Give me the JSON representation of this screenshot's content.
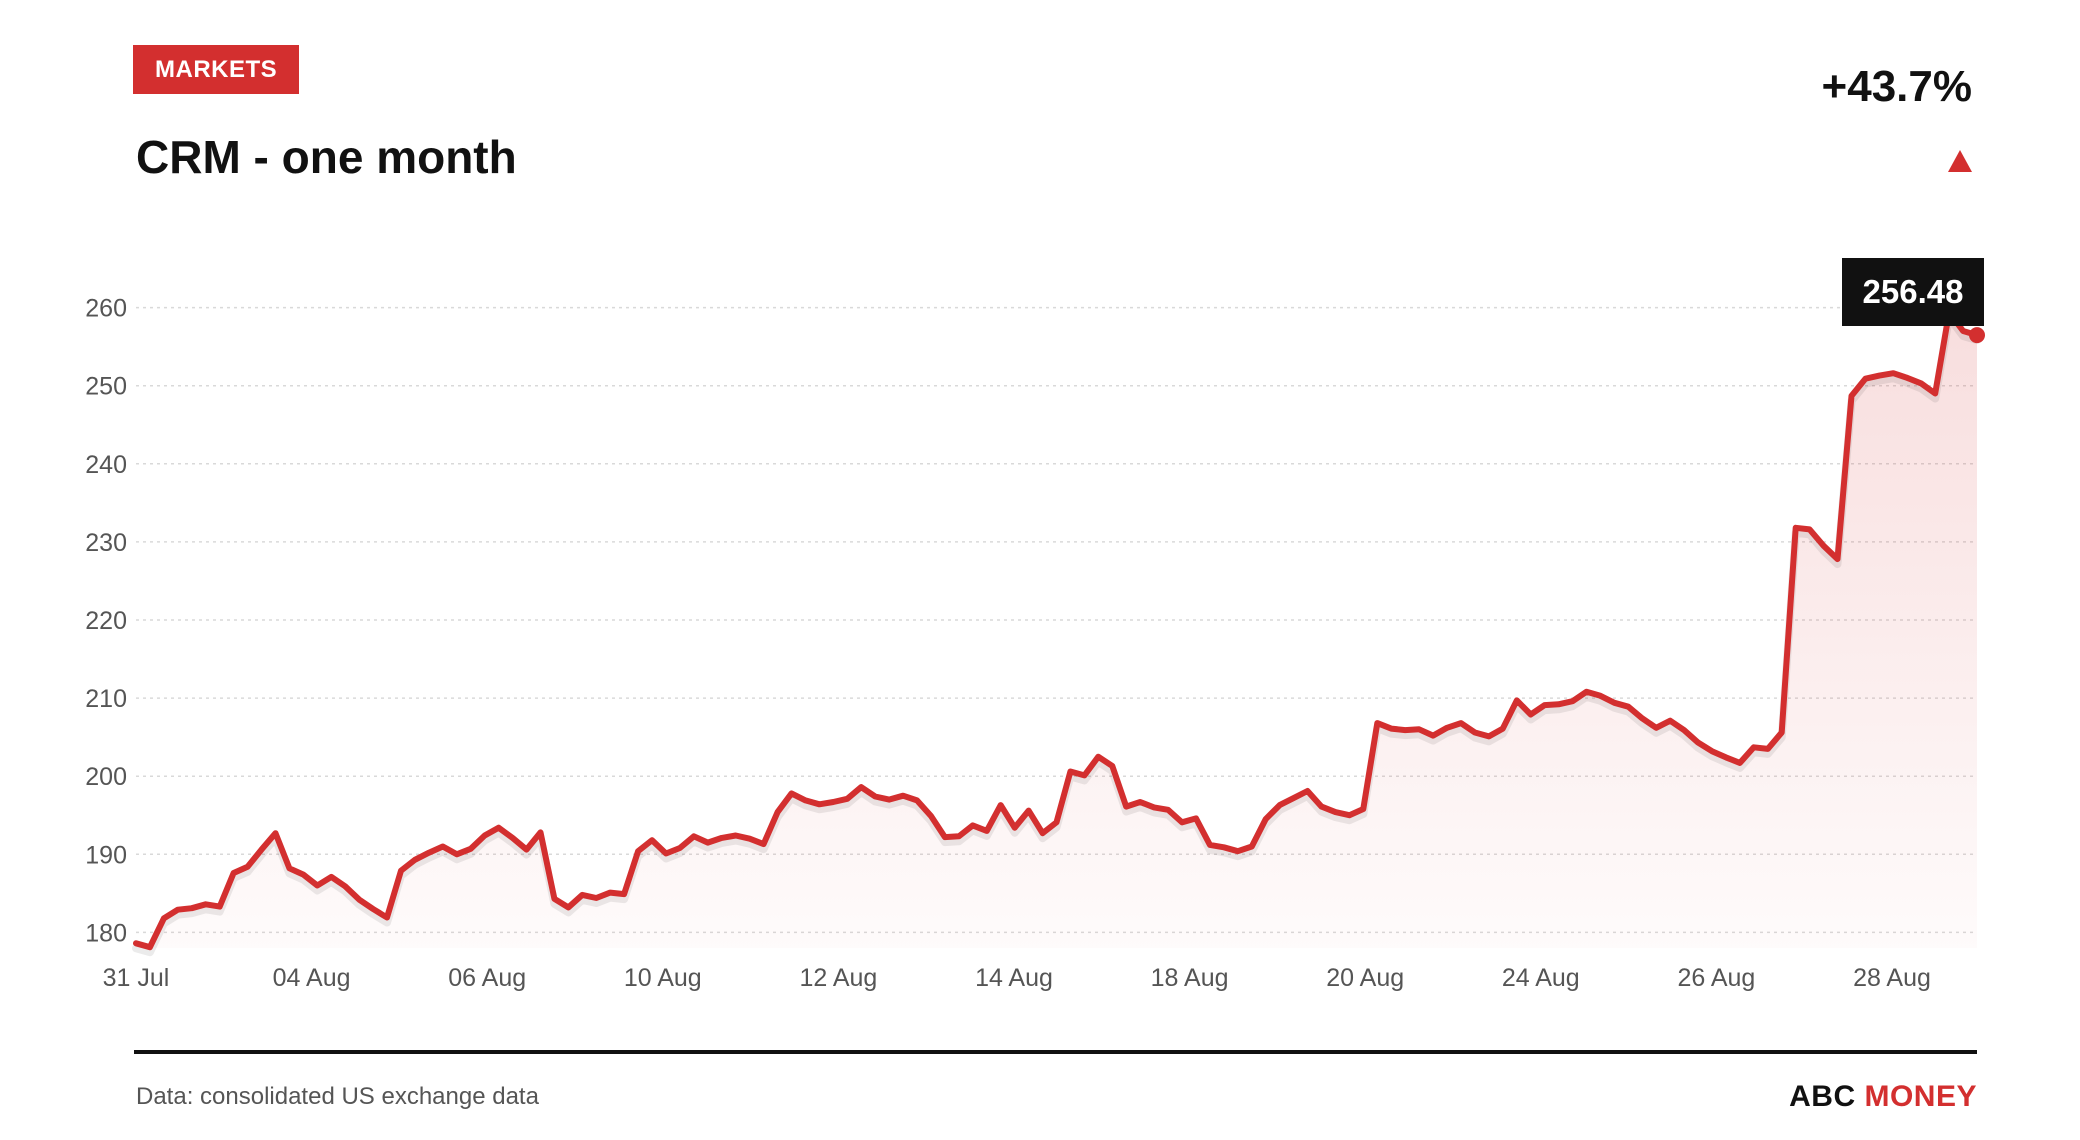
{
  "header": {
    "tag": "MARKETS",
    "title": "CRM - one month",
    "change": "+43.7%"
  },
  "footer": {
    "source": "Data: consolidated US exchange data",
    "brand_primary": "ABC",
    "brand_accent": "MONEY"
  },
  "colors": {
    "accent": "#d32f2f",
    "grid": "#d9d9d9",
    "text": "#111111",
    "muted": "#555555"
  },
  "icons": {
    "change_direction": "up-triangle-icon"
  },
  "chart_data": {
    "type": "area",
    "title": "CRM - one month",
    "xlabel": "",
    "ylabel": "",
    "ylim": [
      178,
      262
    ],
    "yticks": [
      180,
      190,
      200,
      210,
      220,
      230,
      240,
      250,
      260
    ],
    "grid": true,
    "x_ticks": [
      "31 Jul",
      "04 Aug",
      "06 Aug",
      "10 Aug",
      "12 Aug",
      "14 Aug",
      "18 Aug",
      "20 Aug",
      "24 Aug",
      "26 Aug",
      "28 Aug"
    ],
    "last_value_label": "256.48",
    "series": [
      {
        "values": [
          178.6,
          178.1,
          181.8,
          182.9,
          183.1,
          183.6,
          183.3,
          187.6,
          188.4,
          190.6,
          192.7,
          188.2,
          187.4,
          186.0,
          187.1,
          185.9,
          184.2,
          183.0,
          181.9,
          187.9,
          189.3,
          190.2,
          191.0,
          190.0,
          190.7,
          192.4,
          193.4,
          192.1,
          190.6,
          192.8,
          184.3,
          183.2,
          184.8,
          184.4,
          185.1,
          184.9,
          190.4,
          191.8,
          190.1,
          190.8,
          192.3,
          191.5,
          192.1,
          192.4,
          192.0,
          191.3,
          195.4,
          197.8,
          196.9,
          196.4,
          196.7,
          197.1,
          198.6,
          197.4,
          197.0,
          197.5,
          196.9,
          194.9,
          192.2,
          192.3,
          193.7,
          193.0,
          196.3,
          193.4,
          195.6,
          192.7,
          194.1,
          200.6,
          200.1,
          202.5,
          201.3,
          196.1,
          196.7,
          196.0,
          195.7,
          194.1,
          194.6,
          191.2,
          190.9,
          190.4,
          191.0,
          194.5,
          196.3,
          197.2,
          198.1,
          196.1,
          195.4,
          195.0,
          195.8,
          206.8,
          206.1,
          205.9,
          206.0,
          205.2,
          206.2,
          206.8,
          205.6,
          205.1,
          206.1,
          209.7,
          207.9,
          209.1,
          209.2,
          209.6,
          210.8,
          210.3,
          209.4,
          208.9,
          207.4,
          206.2,
          207.1,
          205.9,
          204.3,
          203.2,
          202.4,
          201.7,
          203.7,
          203.5,
          205.6,
          231.8,
          231.6,
          229.5,
          227.8,
          248.7,
          250.9,
          251.3,
          251.6,
          251.0,
          250.3,
          249.0,
          259.4,
          257.0,
          256.48
        ]
      }
    ]
  }
}
